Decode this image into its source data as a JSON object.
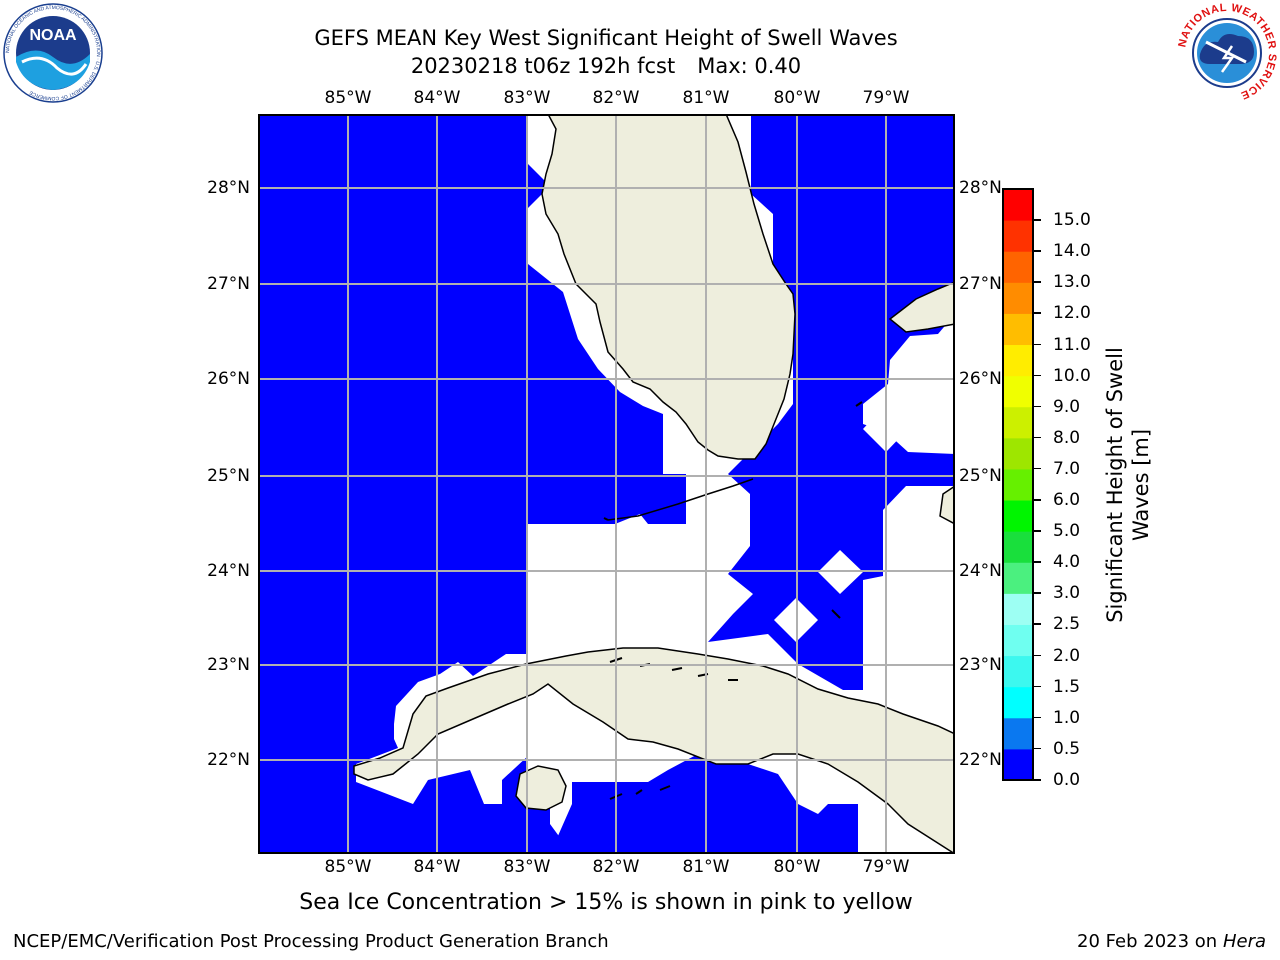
{
  "title_line1": "GEFS MEAN Key West Significant Height of Swell Waves",
  "title_line2_date": "20230218 t06z 192h fcst",
  "title_line2_max": "Max: 0.40",
  "lon_labels": [
    "85°W",
    "84°W",
    "83°W",
    "82°W",
    "81°W",
    "80°W",
    "79°W"
  ],
  "lat_labels": [
    "28°N",
    "27°N",
    "26°N",
    "25°N",
    "24°N",
    "23°N",
    "22°N"
  ],
  "colorbar": {
    "ticks": [
      "0.0",
      "0.5",
      "1.0",
      "1.5",
      "2.0",
      "2.5",
      "3.0",
      "4.0",
      "5.0",
      "6.0",
      "7.0",
      "8.0",
      "9.0",
      "10.0",
      "11.0",
      "12.0",
      "13.0",
      "14.0",
      "15.0"
    ],
    "colors": [
      "#0000ff",
      "#0a78f0",
      "#00ffff",
      "#3cf8ef",
      "#6ffff0",
      "#9dfff3",
      "#4bf07f",
      "#19df3c",
      "#00f500",
      "#66f000",
      "#9ee600",
      "#ccf000",
      "#f0ff00",
      "#ffed00",
      "#ffbd00",
      "#ff8c00",
      "#ff6400",
      "#ff3200",
      "#ff0000"
    ],
    "label_line1": "Significant Height of Swell",
    "label_line2": "Waves [m]"
  },
  "ice_note": "Sea Ice Concentration > 15% is shown in pink to yellow",
  "footer_left": "NCEP/EMC/Verification Post Processing Product Generation Branch",
  "footer_right_date": "20 Feb 2023 on",
  "footer_right_host": "Hera",
  "logo_left_text": "NOAA",
  "logo_left_ring": "NATIONAL OCEANIC AND ATMOSPHERIC ADMINISTRATION · U.S. DEPARTMENT OF COMMERCE",
  "logo_right_ring": "NATIONAL WEATHER SERVICE",
  "colors": {
    "ocean": "#0000ff",
    "land": "#eeeedd",
    "grid": "#b0b0b0"
  }
}
